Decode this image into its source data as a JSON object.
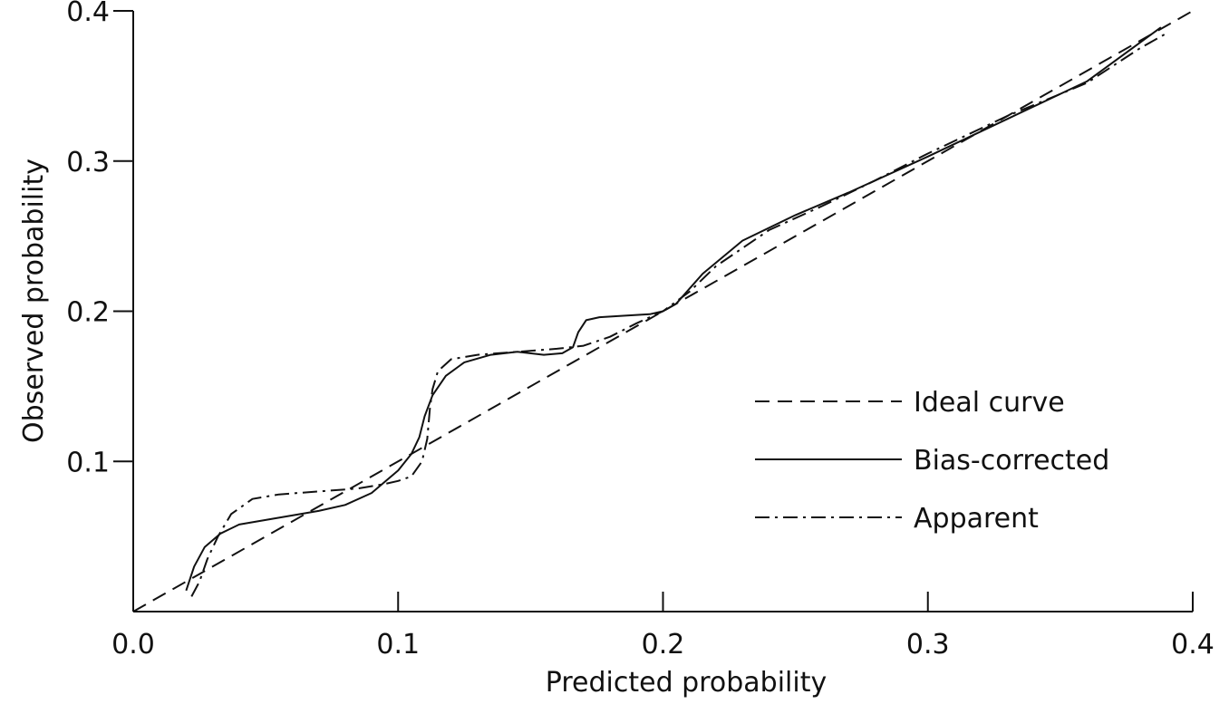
{
  "chart_data": {
    "type": "line",
    "title": "",
    "xlabel": "Predicted probability",
    "ylabel": "Observed probability",
    "xlim": [
      0,
      0.4
    ],
    "ylim": [
      0,
      0.4
    ],
    "xticks": [
      0.0,
      0.1,
      0.2,
      0.3,
      0.4
    ],
    "xtick_labels": [
      "0.0",
      "0.1",
      "0.2",
      "0.3",
      "0.4"
    ],
    "yticks": [
      0.1,
      0.2,
      0.3,
      0.4
    ],
    "ytick_labels": [
      "0.1",
      "0.2",
      "0.3",
      "0.4"
    ],
    "grid": false,
    "legend_position": "bottom-right",
    "series": [
      {
        "name": "Ideal curve",
        "style": "dashed",
        "color": "#111111",
        "x": [
          0.0,
          0.4
        ],
        "y": [
          0.0,
          0.4
        ]
      },
      {
        "name": "Bias-corrected",
        "style": "solid",
        "color": "#111111",
        "x": [
          0.02,
          0.023,
          0.027,
          0.033,
          0.04,
          0.05,
          0.06,
          0.07,
          0.08,
          0.09,
          0.1,
          0.105,
          0.108,
          0.11,
          0.113,
          0.118,
          0.125,
          0.135,
          0.145,
          0.155,
          0.162,
          0.166,
          0.168,
          0.171,
          0.176,
          0.185,
          0.195,
          0.2,
          0.205,
          0.215,
          0.23,
          0.25,
          0.27,
          0.3,
          0.33,
          0.36,
          0.388
        ],
        "y": [
          0.014,
          0.03,
          0.043,
          0.052,
          0.058,
          0.061,
          0.064,
          0.067,
          0.071,
          0.079,
          0.094,
          0.105,
          0.116,
          0.13,
          0.144,
          0.157,
          0.166,
          0.171,
          0.173,
          0.171,
          0.172,
          0.176,
          0.186,
          0.194,
          0.196,
          0.197,
          0.198,
          0.2,
          0.205,
          0.225,
          0.247,
          0.264,
          0.279,
          0.303,
          0.328,
          0.353,
          0.389
        ]
      },
      {
        "name": "Apparent",
        "style": "dash-dot",
        "color": "#111111",
        "x": [
          0.022,
          0.025,
          0.028,
          0.032,
          0.037,
          0.045,
          0.055,
          0.07,
          0.085,
          0.095,
          0.1,
          0.105,
          0.109,
          0.111,
          0.112,
          0.113,
          0.115,
          0.12,
          0.13,
          0.145,
          0.16,
          0.17,
          0.18,
          0.19,
          0.2,
          0.21,
          0.22,
          0.24,
          0.26,
          0.28,
          0.3,
          0.33,
          0.36,
          0.38,
          0.39
        ],
        "y": [
          0.01,
          0.02,
          0.035,
          0.05,
          0.065,
          0.075,
          0.078,
          0.08,
          0.082,
          0.085,
          0.087,
          0.09,
          0.1,
          0.115,
          0.135,
          0.148,
          0.16,
          0.168,
          0.171,
          0.173,
          0.175,
          0.177,
          0.183,
          0.192,
          0.2,
          0.213,
          0.23,
          0.254,
          0.27,
          0.287,
          0.305,
          0.33,
          0.352,
          0.375,
          0.385
        ]
      }
    ]
  }
}
